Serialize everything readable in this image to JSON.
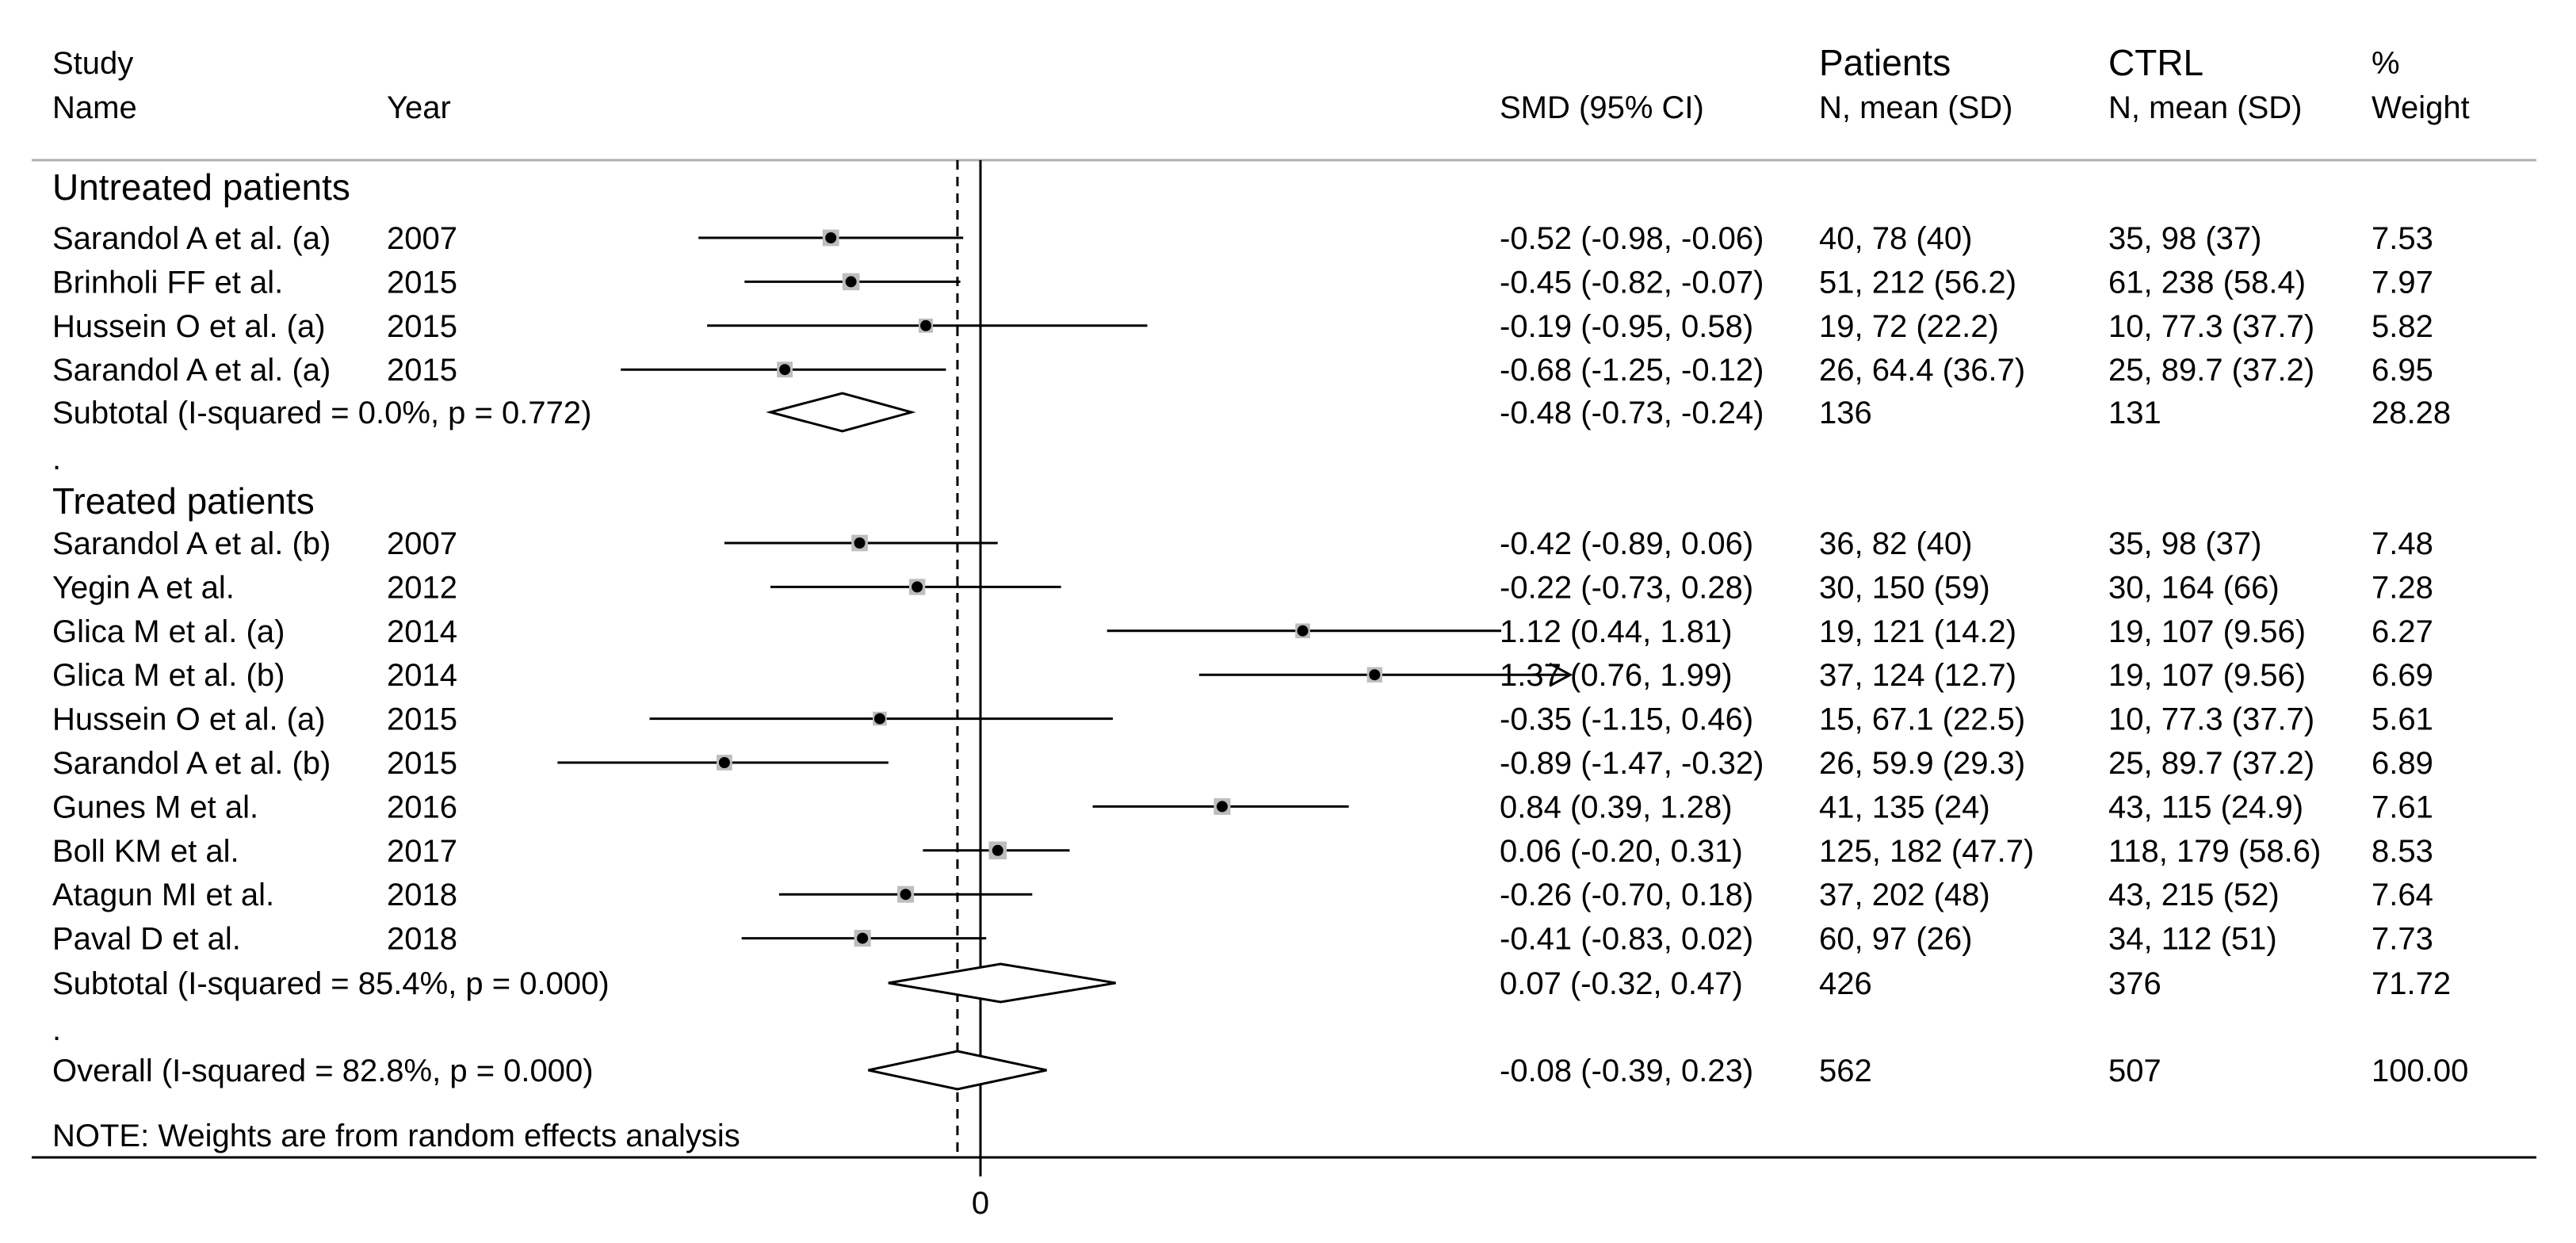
{
  "chart_data": {
    "type": "forest",
    "measure": "SMD (95% CI)",
    "x_range": [
      -1.5,
      2.05
    ],
    "null_line_value": 0,
    "overall_line_value": -0.08,
    "x_tick_labels": [
      "0"
    ],
    "columns": {
      "study_line1": "Study",
      "study_line2": "Name",
      "year": "Year",
      "smd": "SMD (95% CI)",
      "patients_line1": "Patients",
      "patients_line2": "N, mean (SD)",
      "ctrl_line1": "CTRL",
      "ctrl_line2": "N, mean (SD)",
      "weight_line1": "%",
      "weight_line2": "Weight"
    },
    "groups": [
      {
        "label": "Untreated patients",
        "studies": [
          {
            "name": "Sarandol A et al. (a)",
            "year": "2007",
            "est": -0.52,
            "lo": -0.98,
            "hi": -0.06,
            "ci_text": "-0.52 (-0.98, -0.06)",
            "patients": "40, 78 (40)",
            "ctrl": "35, 98 (37)",
            "weight": "7.53"
          },
          {
            "name": "Brinholi FF et al.",
            "year": "2015",
            "est": -0.45,
            "lo": -0.82,
            "hi": -0.07,
            "ci_text": "-0.45 (-0.82, -0.07)",
            "patients": "51, 212 (56.2)",
            "ctrl": "61, 238 (58.4)",
            "weight": "7.97"
          },
          {
            "name": "Hussein O et al. (a)",
            "year": "2015",
            "est": -0.19,
            "lo": -0.95,
            "hi": 0.58,
            "ci_text": "-0.19 (-0.95, 0.58)",
            "patients": "19, 72 (22.2)",
            "ctrl": "10, 77.3 (37.7)",
            "weight": "5.82"
          },
          {
            "name": "Sarandol A et al. (a)",
            "year": "2015",
            "est": -0.68,
            "lo": -1.25,
            "hi": -0.12,
            "ci_text": "-0.68 (-1.25, -0.12)",
            "patients": "26, 64.4 (36.7)",
            "ctrl": "25, 89.7 (37.2)",
            "weight": "6.95"
          }
        ],
        "subtotal": {
          "label": "Subtotal  (I-squared = 0.0%, p = 0.772)",
          "est": -0.48,
          "lo": -0.73,
          "hi": -0.24,
          "ci_text": "-0.48 (-0.73, -0.24)",
          "patients": "136",
          "ctrl": "131",
          "weight": "28.28"
        }
      },
      {
        "label": "Treated patients",
        "studies": [
          {
            "name": "Sarandol A et al. (b)",
            "year": "2007",
            "est": -0.42,
            "lo": -0.89,
            "hi": 0.06,
            "ci_text": "-0.42 (-0.89, 0.06)",
            "patients": "36, 82 (40)",
            "ctrl": "35, 98 (37)",
            "weight": "7.48"
          },
          {
            "name": "Yegin A et al.",
            "year": "2012",
            "est": -0.22,
            "lo": -0.73,
            "hi": 0.28,
            "ci_text": "-0.22 (-0.73, 0.28)",
            "patients": "30, 150 (59)",
            "ctrl": "30, 164 (66)",
            "weight": "7.28"
          },
          {
            "name": "Glica M et al. (a)",
            "year": "2014",
            "est": 1.12,
            "lo": 0.44,
            "hi": 1.81,
            "ci_text": "1.12 (0.44, 1.81)",
            "patients": "19, 121 (14.2)",
            "ctrl": "19, 107 (9.56)",
            "weight": "6.27"
          },
          {
            "name": "Glica M et al. (b)",
            "year": "2014",
            "est": 1.37,
            "lo": 0.76,
            "hi": 1.99,
            "ci_text": "1.37 (0.76, 1.99)",
            "patients": "37, 124 (12.7)",
            "ctrl": "19, 107 (9.56)",
            "weight": "6.69",
            "arrow": true
          },
          {
            "name": "Hussein O et al. (a)",
            "year": "2015",
            "est": -0.35,
            "lo": -1.15,
            "hi": 0.46,
            "ci_text": "-0.35 (-1.15, 0.46)",
            "patients": "15, 67.1 (22.5)",
            "ctrl": "10, 77.3 (37.7)",
            "weight": "5.61"
          },
          {
            "name": "Sarandol A et al. (b)",
            "year": "2015",
            "est": -0.89,
            "lo": -1.47,
            "hi": -0.32,
            "ci_text": "-0.89 (-1.47, -0.32)",
            "patients": "26, 59.9 (29.3)",
            "ctrl": "25, 89.7 (37.2)",
            "weight": "6.89"
          },
          {
            "name": "Gunes M et al.",
            "year": "2016",
            "est": 0.84,
            "lo": 0.39,
            "hi": 1.28,
            "ci_text": "0.84 (0.39, 1.28)",
            "patients": "41, 135 (24)",
            "ctrl": "43, 115 (24.9)",
            "weight": "7.61"
          },
          {
            "name": "Boll KM et al.",
            "year": "2017",
            "est": 0.06,
            "lo": -0.2,
            "hi": 0.31,
            "ci_text": "0.06 (-0.20, 0.31)",
            "patients": "125, 182 (47.7)",
            "ctrl": "118, 179 (58.6)",
            "weight": "8.53"
          },
          {
            "name": "Atagun MI et al.",
            "year": "2018",
            "est": -0.26,
            "lo": -0.7,
            "hi": 0.18,
            "ci_text": "-0.26 (-0.70, 0.18)",
            "patients": "37, 202 (48)",
            "ctrl": "43, 215 (52)",
            "weight": "7.64"
          },
          {
            "name": "Paval D et al.",
            "year": "2018",
            "est": -0.41,
            "lo": -0.83,
            "hi": 0.02,
            "ci_text": "-0.41 (-0.83, 0.02)",
            "patients": "60, 97 (26)",
            "ctrl": "34, 112 (51)",
            "weight": "7.73"
          }
        ],
        "subtotal": {
          "label": "Subtotal  (I-squared = 85.4%, p = 0.000)",
          "est": 0.07,
          "lo": -0.32,
          "hi": 0.47,
          "ci_text": "0.07 (-0.32, 0.47)",
          "patients": "426",
          "ctrl": "376",
          "weight": "71.72"
        }
      }
    ],
    "spacer_mark": ".",
    "overall": {
      "label": "Overall  (I-squared = 82.8%, p = 0.000)",
      "est": -0.08,
      "lo": -0.39,
      "hi": 0.23,
      "ci_text": "-0.08 (-0.39, 0.23)",
      "patients": "562",
      "ctrl": "507",
      "weight": "100.00"
    },
    "note": "NOTE: Weights are from random effects analysis"
  }
}
